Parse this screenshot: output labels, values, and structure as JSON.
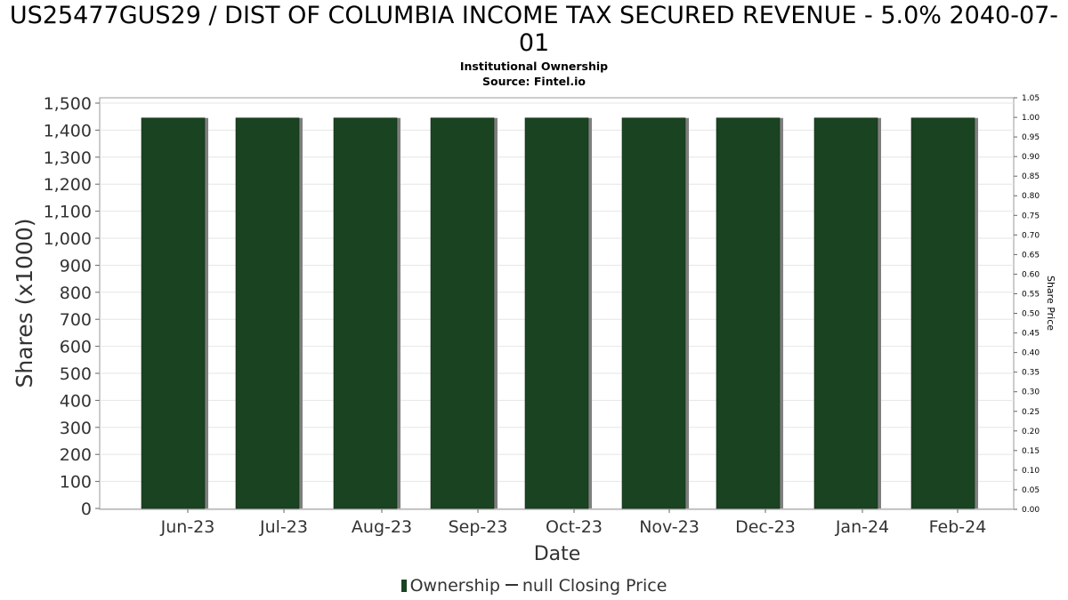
{
  "chart_data": {
    "type": "bar",
    "title": "US25477GUS29 / DIST OF COLUMBIA INCOME TAX SECURED REVENUE - 5.0% 2040-07-01",
    "subtitle": "Institutional Ownership",
    "source": "Source: Fintel.io",
    "xlabel": "Date",
    "ylabel": "Shares (x1000)",
    "y2label": "Share Price",
    "categories": [
      "Jun-23",
      "Jul-23",
      "Aug-23",
      "Sep-23",
      "Oct-23",
      "Nov-23",
      "Dec-23",
      "Jan-24",
      "Feb-24"
    ],
    "series": [
      {
        "name": "Ownership",
        "values": [
          1445,
          1445,
          1445,
          1445,
          1445,
          1445,
          1445,
          1445,
          1445
        ]
      }
    ],
    "ylim": [
      0,
      1500
    ],
    "yticks": [
      0,
      100,
      200,
      300,
      400,
      500,
      600,
      700,
      800,
      900,
      1000,
      1100,
      1200,
      1300,
      1400,
      1500
    ],
    "ytick_labels": [
      "0",
      "100",
      "200",
      "300",
      "400",
      "500",
      "600",
      "700",
      "800",
      "900",
      "1,000",
      "1,100",
      "1,200",
      "1,300",
      "1,400",
      "1,500"
    ],
    "y2lim": [
      0,
      1.05
    ],
    "y2ticks": [
      "0.00",
      "0.05",
      "0.10",
      "0.15",
      "0.20",
      "0.25",
      "0.30",
      "0.35",
      "0.40",
      "0.45",
      "0.50",
      "0.55",
      "0.60",
      "0.65",
      "0.70",
      "0.75",
      "0.80",
      "0.85",
      "0.90",
      "0.95",
      "1.00",
      "1.05"
    ],
    "legend": {
      "position": "bottom",
      "items": [
        "Ownership",
        "null Closing Price"
      ]
    },
    "grid": true
  },
  "colors": {
    "bar": "#1a4421",
    "bar_shadow": "#7f7f7f",
    "grid": "#e6e6e6",
    "axis": "#999999"
  }
}
